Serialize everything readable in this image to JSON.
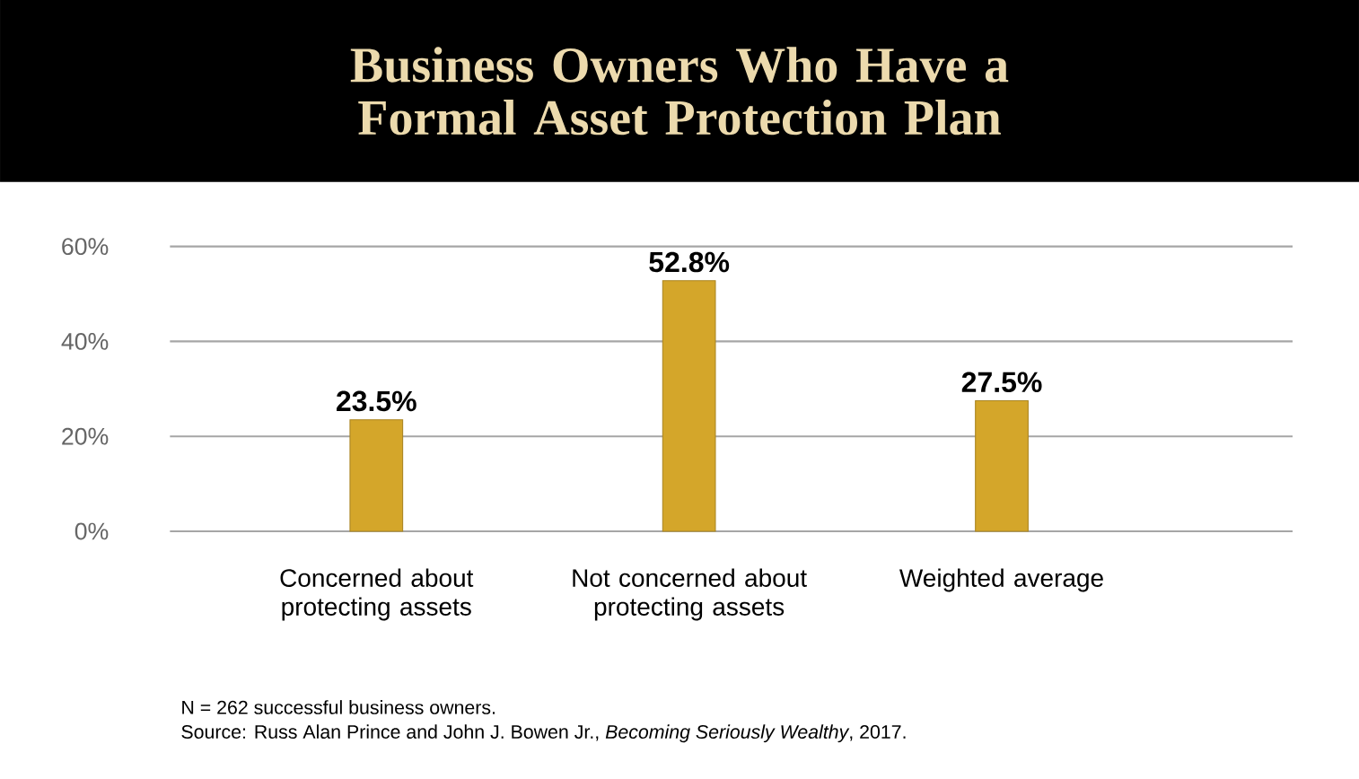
{
  "chart_data": {
    "type": "bar",
    "title": "Business Owners Who Have a Formal Asset Protection Plan",
    "categories": [
      "Concerned about protecting assets",
      "Not concerned about protecting assets",
      "Weighted average"
    ],
    "values": [
      23.5,
      52.8,
      27.5
    ],
    "value_labels": [
      "23.5%",
      "52.8%",
      "27.5%"
    ],
    "color": "#d4a62a",
    "ylim": [
      0,
      60
    ],
    "yticks": [
      {
        "value": 0,
        "label": "0%"
      },
      {
        "value": 20,
        "label": "20%"
      },
      {
        "value": 40,
        "label": "40%"
      },
      {
        "value": 60,
        "label": "60%"
      }
    ],
    "grid": "y",
    "annotations": [
      "N = 262 successful business owners.",
      "Source: Russ Alan Prince and John J. Bowen Jr., *Becoming Seriously Wealthy*, 2017."
    ]
  }
}
